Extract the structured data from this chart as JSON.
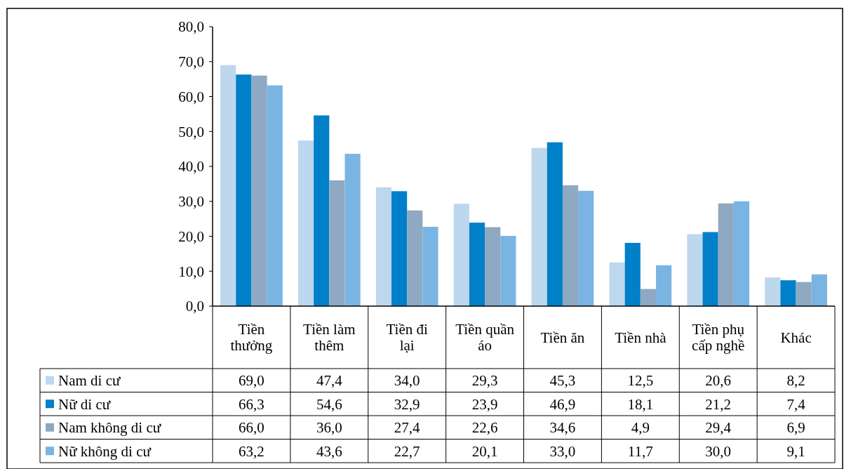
{
  "chart_data": {
    "type": "bar",
    "categories": [
      "Tiền thưởng",
      "Tiền làm thêm",
      "Tiền đi lại",
      "Tiền quần áo",
      "Tiền ăn",
      "Tiền nhà",
      "Tiền phụ cấp nghề",
      "Khác"
    ],
    "series": [
      {
        "name": "Nam di cư",
        "color": "#bdd7ee",
        "values": [
          69.0,
          47.4,
          34.0,
          29.3,
          45.3,
          12.5,
          20.6,
          8.2
        ]
      },
      {
        "name": "Nữ di cư",
        "color": "#0080c8",
        "values": [
          66.3,
          54.6,
          32.9,
          23.9,
          46.9,
          18.1,
          21.2,
          7.4
        ]
      },
      {
        "name": "Nam không di cư",
        "color": "#8ea9c1",
        "values": [
          66.0,
          36.0,
          27.4,
          22.6,
          34.6,
          4.9,
          29.4,
          6.9
        ]
      },
      {
        "name": "Nữ không di cư",
        "color": "#7ab4e3",
        "values": [
          63.2,
          43.6,
          22.7,
          20.1,
          33.0,
          11.7,
          30.0,
          9.1
        ]
      }
    ],
    "value_labels": [
      [
        "69,0",
        "47,4",
        "34,0",
        "29,3",
        "45,3",
        "12,5",
        "20,6",
        "8,2"
      ],
      [
        "66,3",
        "54,6",
        "32,9",
        "23,9",
        "46,9",
        "18,1",
        "21,2",
        "7,4"
      ],
      [
        "66,0",
        "36,0",
        "27,4",
        "22,6",
        "34,6",
        "4,9",
        "29,4",
        "6,9"
      ],
      [
        "63,2",
        "43,6",
        "22,7",
        "20,1",
        "33,0",
        "11,7",
        "30,0",
        "9,1"
      ]
    ],
    "ylim": [
      0,
      80
    ],
    "yticks": [
      {
        "value": 0,
        "label": "0,0"
      },
      {
        "value": 10,
        "label": "10,0"
      },
      {
        "value": 20,
        "label": "20,0"
      },
      {
        "value": 30,
        "label": "30,0"
      },
      {
        "value": 40,
        "label": "40,0"
      },
      {
        "value": 50,
        "label": "50,0"
      },
      {
        "value": 60,
        "label": "60,0"
      },
      {
        "value": 70,
        "label": "70,0"
      },
      {
        "value": 80,
        "label": "80,0"
      }
    ],
    "legend": "bottom"
  }
}
